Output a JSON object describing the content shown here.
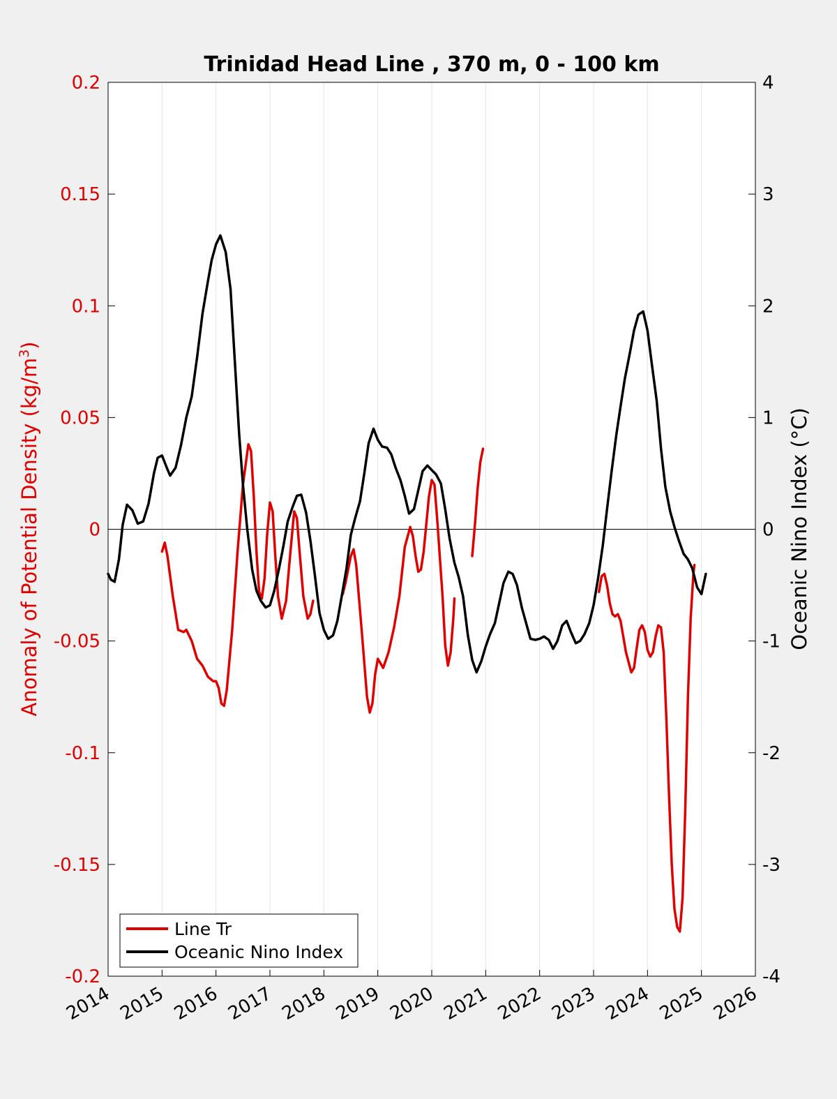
{
  "chart_data": {
    "type": "line",
    "title": "Trinidad Head Line , 370 m, 0 - 100 km",
    "xlim": [
      2014,
      2026
    ],
    "x_ticks": [
      2014,
      2015,
      2016,
      2017,
      2018,
      2019,
      2020,
      2021,
      2022,
      2023,
      2024,
      2025,
      2026
    ],
    "x_tick_labels": [
      "2014",
      "2015",
      "2016",
      "2017",
      "2018",
      "2019",
      "2020",
      "2021",
      "2022",
      "2023",
      "2024",
      "2025",
      "2026"
    ],
    "left_axis": {
      "label": "Anomaly of Potential Density (kg/m",
      "label_superscript": "3",
      "label_close": ")",
      "ylim": [
        -0.2,
        0.2
      ],
      "ticks": [
        -0.2,
        -0.15,
        -0.1,
        -0.05,
        0,
        0.05,
        0.1,
        0.15,
        0.2
      ],
      "tick_labels": [
        "-0.2",
        "-0.15",
        "-0.1",
        "-0.05",
        "0",
        "0.05",
        "0.1",
        "0.15",
        "0.2"
      ],
      "color": "#e00000"
    },
    "right_axis": {
      "label": "Oceanic Nino Index (°C)",
      "ylim": [
        -4,
        4
      ],
      "ticks": [
        -4,
        -3,
        -2,
        -1,
        0,
        1,
        2,
        3,
        4
      ],
      "tick_labels": [
        "-4",
        "-3",
        "-2",
        "-1",
        "0",
        "1",
        "2",
        "3",
        "4"
      ],
      "color": "#000000"
    },
    "grid": "vertical",
    "zero_line": true,
    "legend": {
      "position": "bottom-left",
      "entries": [
        "Line Tr",
        "Oceanic Nino Index"
      ]
    },
    "series": [
      {
        "name": "Line Tr",
        "axis": "left",
        "color": "#e00000",
        "segments": [
          [
            [
              2015.0,
              -0.01
            ],
            [
              2015.05,
              -0.006
            ],
            [
              2015.1,
              -0.012
            ],
            [
              2015.2,
              -0.03
            ],
            [
              2015.3,
              -0.045
            ],
            [
              2015.4,
              -0.046
            ],
            [
              2015.45,
              -0.045
            ],
            [
              2015.55,
              -0.05
            ],
            [
              2015.65,
              -0.058
            ],
            [
              2015.75,
              -0.061
            ],
            [
              2015.85,
              -0.066
            ],
            [
              2015.95,
              -0.068
            ],
            [
              2016.0,
              -0.068
            ],
            [
              2016.05,
              -0.071
            ],
            [
              2016.1,
              -0.078
            ],
            [
              2016.15,
              -0.079
            ],
            [
              2016.2,
              -0.072
            ],
            [
              2016.3,
              -0.045
            ],
            [
              2016.4,
              -0.01
            ],
            [
              2016.5,
              0.02
            ],
            [
              2016.6,
              0.038
            ],
            [
              2016.65,
              0.035
            ],
            [
              2016.7,
              0.015
            ],
            [
              2016.75,
              -0.01
            ],
            [
              2016.8,
              -0.028
            ],
            [
              2016.85,
              -0.031
            ],
            [
              2016.9,
              -0.022
            ],
            [
              2016.95,
              -0.002
            ],
            [
              2017.0,
              0.012
            ],
            [
              2017.05,
              0.008
            ],
            [
              2017.1,
              -0.012
            ],
            [
              2017.15,
              -0.03
            ],
            [
              2017.22,
              -0.04
            ],
            [
              2017.3,
              -0.032
            ],
            [
              2017.38,
              -0.01
            ],
            [
              2017.45,
              0.008
            ],
            [
              2017.5,
              0.005
            ],
            [
              2017.55,
              -0.01
            ],
            [
              2017.62,
              -0.03
            ],
            [
              2017.7,
              -0.04
            ],
            [
              2017.75,
              -0.038
            ],
            [
              2017.8,
              -0.032
            ]
          ],
          [
            [
              2018.35,
              -0.029
            ],
            [
              2018.4,
              -0.024
            ],
            [
              2018.5,
              -0.012
            ],
            [
              2018.55,
              -0.009
            ],
            [
              2018.6,
              -0.016
            ],
            [
              2018.7,
              -0.045
            ],
            [
              2018.8,
              -0.075
            ],
            [
              2018.85,
              -0.082
            ],
            [
              2018.9,
              -0.078
            ],
            [
              2018.95,
              -0.065
            ],
            [
              2019.0,
              -0.058
            ],
            [
              2019.05,
              -0.06
            ],
            [
              2019.1,
              -0.062
            ],
            [
              2019.2,
              -0.055
            ],
            [
              2019.3,
              -0.044
            ],
            [
              2019.4,
              -0.03
            ],
            [
              2019.5,
              -0.008
            ],
            [
              2019.6,
              0.001
            ],
            [
              2019.65,
              -0.003
            ],
            [
              2019.7,
              -0.012
            ],
            [
              2019.75,
              -0.019
            ],
            [
              2019.8,
              -0.018
            ],
            [
              2019.85,
              -0.01
            ],
            [
              2019.95,
              0.015
            ],
            [
              2020.0,
              0.022
            ],
            [
              2020.05,
              0.02
            ],
            [
              2020.1,
              0.005
            ],
            [
              2020.2,
              -0.03
            ],
            [
              2020.25,
              -0.052
            ],
            [
              2020.3,
              -0.061
            ],
            [
              2020.35,
              -0.055
            ],
            [
              2020.4,
              -0.04
            ],
            [
              2020.42,
              -0.031
            ]
          ],
          [
            [
              2020.75,
              -0.012
            ],
            [
              2020.8,
              0.002
            ],
            [
              2020.85,
              0.018
            ],
            [
              2020.9,
              0.03
            ],
            [
              2020.95,
              0.036
            ]
          ],
          [
            [
              2023.1,
              -0.028
            ],
            [
              2023.15,
              -0.021
            ],
            [
              2023.2,
              -0.02
            ],
            [
              2023.25,
              -0.025
            ],
            [
              2023.3,
              -0.033
            ],
            [
              2023.35,
              -0.038
            ],
            [
              2023.4,
              -0.039
            ],
            [
              2023.45,
              -0.038
            ],
            [
              2023.5,
              -0.041
            ],
            [
              2023.6,
              -0.055
            ],
            [
              2023.7,
              -0.064
            ],
            [
              2023.75,
              -0.062
            ],
            [
              2023.8,
              -0.053
            ],
            [
              2023.85,
              -0.045
            ],
            [
              2023.9,
              -0.043
            ],
            [
              2023.95,
              -0.046
            ],
            [
              2024.0,
              -0.054
            ],
            [
              2024.05,
              -0.057
            ],
            [
              2024.1,
              -0.055
            ],
            [
              2024.15,
              -0.048
            ],
            [
              2024.2,
              -0.043
            ],
            [
              2024.25,
              -0.044
            ],
            [
              2024.3,
              -0.055
            ],
            [
              2024.35,
              -0.085
            ],
            [
              2024.4,
              -0.12
            ],
            [
              2024.45,
              -0.15
            ],
            [
              2024.5,
              -0.17
            ],
            [
              2024.55,
              -0.178
            ],
            [
              2024.6,
              -0.18
            ],
            [
              2024.65,
              -0.165
            ],
            [
              2024.7,
              -0.125
            ],
            [
              2024.75,
              -0.075
            ],
            [
              2024.8,
              -0.04
            ],
            [
              2024.85,
              -0.02
            ],
            [
              2024.87,
              -0.016
            ]
          ]
        ]
      },
      {
        "name": "Oceanic Nino Index",
        "axis": "right",
        "color": "#000000",
        "points": [
          [
            2014.0,
            -0.4
          ],
          [
            2014.05,
            -0.45
          ],
          [
            2014.12,
            -0.47
          ],
          [
            2014.2,
            -0.27
          ],
          [
            2014.27,
            0.04
          ],
          [
            2014.35,
            0.22
          ],
          [
            2014.45,
            0.17
          ],
          [
            2014.55,
            0.05
          ],
          [
            2014.65,
            0.07
          ],
          [
            2014.75,
            0.23
          ],
          [
            2014.85,
            0.5
          ],
          [
            2014.92,
            0.64
          ],
          [
            2015.0,
            0.66
          ],
          [
            2015.08,
            0.56
          ],
          [
            2015.15,
            0.48
          ],
          [
            2015.25,
            0.55
          ],
          [
            2015.35,
            0.75
          ],
          [
            2015.45,
            1.0
          ],
          [
            2015.55,
            1.19
          ],
          [
            2015.65,
            1.54
          ],
          [
            2015.75,
            1.93
          ],
          [
            2015.85,
            2.22
          ],
          [
            2015.92,
            2.41
          ],
          [
            2016.0,
            2.55
          ],
          [
            2016.08,
            2.63
          ],
          [
            2016.18,
            2.48
          ],
          [
            2016.27,
            2.15
          ],
          [
            2016.35,
            1.5
          ],
          [
            2016.43,
            0.85
          ],
          [
            2016.5,
            0.4
          ],
          [
            2016.58,
            0.0
          ],
          [
            2016.67,
            -0.36
          ],
          [
            2016.75,
            -0.55
          ],
          [
            2016.83,
            -0.64
          ],
          [
            2016.92,
            -0.7
          ],
          [
            2017.0,
            -0.68
          ],
          [
            2017.08,
            -0.55
          ],
          [
            2017.17,
            -0.35
          ],
          [
            2017.25,
            -0.15
          ],
          [
            2017.33,
            0.07
          ],
          [
            2017.42,
            0.2
          ],
          [
            2017.5,
            0.3
          ],
          [
            2017.58,
            0.31
          ],
          [
            2017.67,
            0.15
          ],
          [
            2017.75,
            -0.1
          ],
          [
            2017.83,
            -0.4
          ],
          [
            2017.92,
            -0.75
          ],
          [
            2018.0,
            -0.9
          ],
          [
            2018.08,
            -0.98
          ],
          [
            2018.17,
            -0.95
          ],
          [
            2018.25,
            -0.82
          ],
          [
            2018.33,
            -0.6
          ],
          [
            2018.42,
            -0.35
          ],
          [
            2018.5,
            -0.05
          ],
          [
            2018.58,
            0.1
          ],
          [
            2018.67,
            0.25
          ],
          [
            2018.75,
            0.5
          ],
          [
            2018.83,
            0.77
          ],
          [
            2018.92,
            0.9
          ],
          [
            2019.0,
            0.8
          ],
          [
            2019.08,
            0.74
          ],
          [
            2019.17,
            0.73
          ],
          [
            2019.25,
            0.67
          ],
          [
            2019.33,
            0.55
          ],
          [
            2019.42,
            0.44
          ],
          [
            2019.5,
            0.3
          ],
          [
            2019.58,
            0.14
          ],
          [
            2019.67,
            0.18
          ],
          [
            2019.75,
            0.35
          ],
          [
            2019.83,
            0.52
          ],
          [
            2019.92,
            0.57
          ],
          [
            2020.0,
            0.53
          ],
          [
            2020.08,
            0.49
          ],
          [
            2020.17,
            0.41
          ],
          [
            2020.25,
            0.18
          ],
          [
            2020.33,
            -0.08
          ],
          [
            2020.42,
            -0.3
          ],
          [
            2020.5,
            -0.43
          ],
          [
            2020.58,
            -0.6
          ],
          [
            2020.67,
            -0.95
          ],
          [
            2020.75,
            -1.17
          ],
          [
            2020.83,
            -1.28
          ],
          [
            2020.92,
            -1.18
          ],
          [
            2021.0,
            -1.05
          ],
          [
            2021.08,
            -0.94
          ],
          [
            2021.17,
            -0.84
          ],
          [
            2021.25,
            -0.66
          ],
          [
            2021.33,
            -0.48
          ],
          [
            2021.42,
            -0.38
          ],
          [
            2021.5,
            -0.4
          ],
          [
            2021.58,
            -0.5
          ],
          [
            2021.67,
            -0.7
          ],
          [
            2021.75,
            -0.84
          ],
          [
            2021.83,
            -0.98
          ],
          [
            2021.92,
            -0.99
          ],
          [
            2022.0,
            -0.98
          ],
          [
            2022.08,
            -0.96
          ],
          [
            2022.17,
            -0.99
          ],
          [
            2022.25,
            -1.07
          ],
          [
            2022.33,
            -1.0
          ],
          [
            2022.42,
            -0.86
          ],
          [
            2022.5,
            -0.82
          ],
          [
            2022.58,
            -0.92
          ],
          [
            2022.67,
            -1.02
          ],
          [
            2022.75,
            -1.0
          ],
          [
            2022.83,
            -0.94
          ],
          [
            2022.92,
            -0.84
          ],
          [
            2023.0,
            -0.68
          ],
          [
            2023.08,
            -0.45
          ],
          [
            2023.17,
            -0.15
          ],
          [
            2023.25,
            0.18
          ],
          [
            2023.33,
            0.5
          ],
          [
            2023.42,
            0.84
          ],
          [
            2023.5,
            1.1
          ],
          [
            2023.58,
            1.35
          ],
          [
            2023.67,
            1.57
          ],
          [
            2023.75,
            1.78
          ],
          [
            2023.83,
            1.92
          ],
          [
            2023.92,
            1.95
          ],
          [
            2024.0,
            1.78
          ],
          [
            2024.08,
            1.48
          ],
          [
            2024.17,
            1.15
          ],
          [
            2024.25,
            0.72
          ],
          [
            2024.33,
            0.38
          ],
          [
            2024.42,
            0.16
          ],
          [
            2024.5,
            0.02
          ],
          [
            2024.58,
            -0.1
          ],
          [
            2024.67,
            -0.22
          ],
          [
            2024.75,
            -0.27
          ],
          [
            2024.83,
            -0.35
          ],
          [
            2024.92,
            -0.52
          ],
          [
            2025.0,
            -0.58
          ],
          [
            2025.08,
            -0.4
          ]
        ]
      }
    ]
  }
}
